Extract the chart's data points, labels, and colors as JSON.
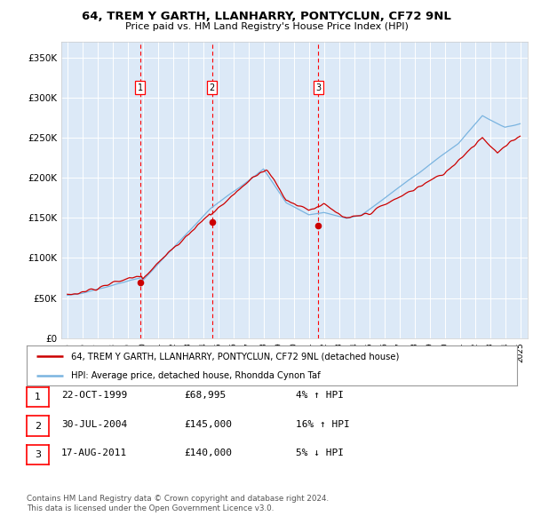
{
  "title": "64, TREM Y GARTH, LLANHARRY, PONTYCLUN, CF72 9NL",
  "subtitle": "Price paid vs. HM Land Registry's House Price Index (HPI)",
  "background_color": "#ffffff",
  "plot_bg_color": "#dce9f7",
  "grid_color": "#ffffff",
  "sale_labels": [
    "1",
    "2",
    "3"
  ],
  "sale_dates_num": [
    1999.81,
    2004.58,
    2011.63
  ],
  "sale_prices": [
    68995,
    145000,
    140000
  ],
  "legend_line1": "64, TREM Y GARTH, LLANHARRY, PONTYCLUN, CF72 9NL (detached house)",
  "legend_line2": "HPI: Average price, detached house, Rhondda Cynon Taf",
  "table": [
    {
      "num": "1",
      "date": "22-OCT-1999",
      "price": "£68,995",
      "hpi": "4% ↑ HPI"
    },
    {
      "num": "2",
      "date": "30-JUL-2004",
      "price": "£145,000",
      "hpi": "16% ↑ HPI"
    },
    {
      "num": "3",
      "date": "17-AUG-2011",
      "price": "£140,000",
      "hpi": "5% ↓ HPI"
    }
  ],
  "footer1": "Contains HM Land Registry data © Crown copyright and database right 2024.",
  "footer2": "This data is licensed under the Open Government Licence v3.0.",
  "yticks": [
    0,
    50000,
    100000,
    150000,
    200000,
    250000,
    300000,
    350000
  ],
  "ytick_labels": [
    "£0",
    "£50K",
    "£100K",
    "£150K",
    "£200K",
    "£250K",
    "£300K",
    "£350K"
  ],
  "xmin": 1994.6,
  "xmax": 2025.5,
  "ymin": 0,
  "ymax": 370000,
  "red_color": "#cc0000",
  "blue_color": "#7ab4e0"
}
